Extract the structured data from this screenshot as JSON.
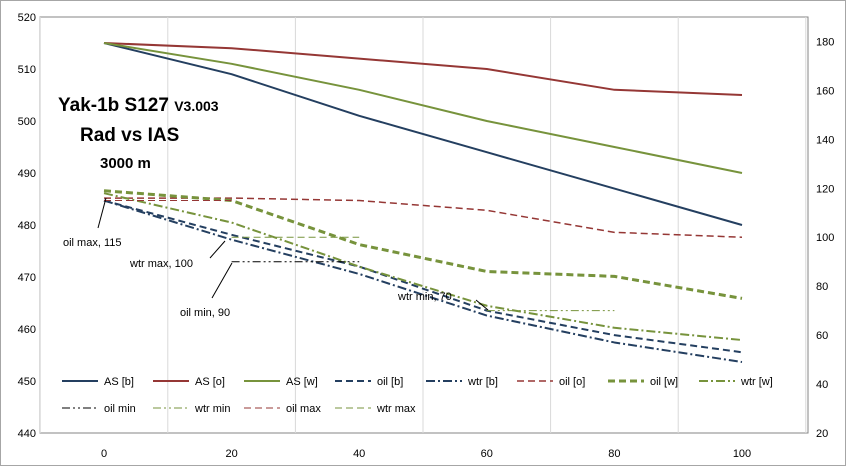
{
  "chart_data": {
    "type": "line",
    "title": {
      "line1_main": "Yak-1b S127 ",
      "line1_version": "V3.003",
      "line2": "Rad vs IAS",
      "line3": "3000 m"
    },
    "x": [
      0,
      20,
      40,
      60,
      80,
      100
    ],
    "x_ticks": [
      "0",
      "20",
      "40",
      "60",
      "80",
      "100"
    ],
    "xlim": [
      0,
      100
    ],
    "ylim_left": [
      440,
      520
    ],
    "yticks_left": [
      "440",
      "450",
      "460",
      "470",
      "480",
      "490",
      "500",
      "510",
      "520"
    ],
    "ylim_right": [
      20,
      190
    ],
    "yticks_right": [
      "20",
      "40",
      "60",
      "80",
      "100",
      "120",
      "140",
      "160",
      "180"
    ],
    "grid": "vertical only",
    "legend_position": "bottom inside plot",
    "series": [
      {
        "name": "AS [b]",
        "axis": "left",
        "color": "#243f60",
        "dash": "solid",
        "width": 2,
        "x": [
          0,
          20,
          40,
          60,
          80,
          100
        ],
        "y": [
          515,
          509,
          501,
          494,
          487,
          480
        ]
      },
      {
        "name": "AS [o]",
        "axis": "left",
        "color": "#953735",
        "dash": "solid",
        "width": 2,
        "x": [
          0,
          20,
          40,
          60,
          80,
          100
        ],
        "y": [
          515,
          514,
          512,
          510,
          506,
          505
        ]
      },
      {
        "name": "AS [w]",
        "axis": "left",
        "color": "#77933c",
        "dash": "solid",
        "width": 2,
        "x": [
          0,
          20,
          40,
          60,
          80,
          100
        ],
        "y": [
          515,
          511,
          506,
          500,
          495,
          490
        ]
      },
      {
        "name": "oil [b]",
        "axis": "right",
        "color": "#243f60",
        "dash": "dash",
        "width": 2,
        "x": [
          0,
          20,
          40,
          60,
          80,
          100
        ],
        "y": [
          115,
          101,
          88,
          70,
          60,
          53
        ]
      },
      {
        "name": "wtr [b]",
        "axis": "right",
        "color": "#243f60",
        "dash": "dashdot",
        "width": 2,
        "x": [
          0,
          20,
          40,
          60,
          80,
          100
        ],
        "y": [
          115,
          99,
          85,
          68,
          57,
          49
        ]
      },
      {
        "name": "oil [o]",
        "axis": "right",
        "color": "#953735",
        "dash": "dash",
        "width": 1.5,
        "x": [
          0,
          20,
          40,
          60,
          80,
          100
        ],
        "y": [
          116,
          116,
          115,
          111,
          102,
          100
        ]
      },
      {
        "name": "oil [w]",
        "axis": "right",
        "color": "#77933c",
        "dash": "dash",
        "width": 3,
        "x": [
          0,
          20,
          40,
          60,
          80,
          100
        ],
        "y": [
          119,
          115,
          97,
          86,
          84,
          75
        ]
      },
      {
        "name": "wtr [w]",
        "axis": "right",
        "color": "#77933c",
        "dash": "dashdot",
        "width": 2,
        "x": [
          0,
          20,
          40,
          60,
          80,
          100
        ],
        "y": [
          118,
          106,
          88,
          72,
          63,
          58
        ]
      },
      {
        "name": "oil min",
        "axis": "right",
        "color": "#000000",
        "dash": "dashdotdot",
        "width": 1,
        "x": [
          20,
          40
        ],
        "y": [
          90,
          90
        ]
      },
      {
        "name": "wtr min",
        "axis": "right",
        "color": "#77933c",
        "dash": "dashdotdot",
        "width": 1,
        "x": [
          60,
          80
        ],
        "y": [
          70,
          70
        ]
      },
      {
        "name": "oil max",
        "axis": "right",
        "color": "#953735",
        "dash": "dash",
        "width": 1,
        "x": [
          0,
          20
        ],
        "y": [
          115,
          115
        ]
      },
      {
        "name": "wtr max",
        "axis": "right",
        "color": "#77933c",
        "dash": "dash",
        "width": 1,
        "x": [
          20,
          40
        ],
        "y": [
          100,
          100
        ]
      }
    ],
    "annotations": [
      {
        "text": "oil max, 115"
      },
      {
        "text": "wtr max, 100"
      },
      {
        "text": "oil min, 90"
      },
      {
        "text": "wtr min, 70"
      }
    ]
  }
}
